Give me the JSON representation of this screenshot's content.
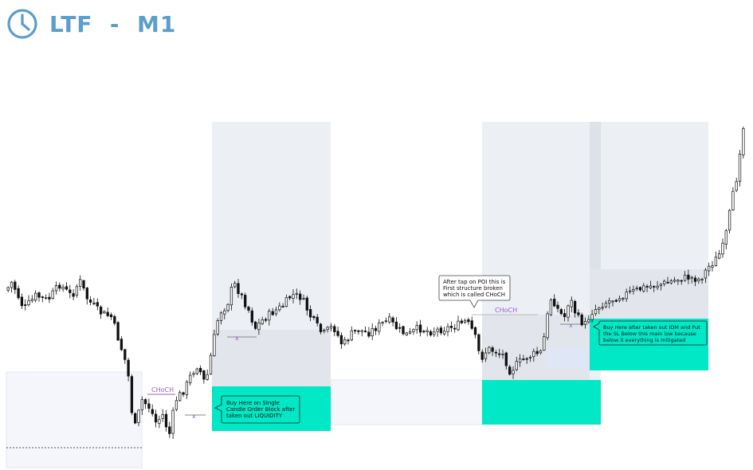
{
  "header": {
    "title": "LTF  -  M1",
    "icon": "clock-icon",
    "color": "#5b9ec9"
  },
  "chart_data": {
    "type": "candlestick",
    "timeframe": "M1",
    "colors": {
      "candle": "#111111",
      "zone_gray": "#e6e9ef",
      "zone_blue": "#f1f4fb",
      "order_block": "#00e8c6",
      "choch": "#9b59d0"
    },
    "close_path": [
      [
        0,
        376
      ],
      [
        15,
        354
      ],
      [
        30,
        388
      ],
      [
        45,
        371
      ],
      [
        60,
        377
      ],
      [
        75,
        357
      ],
      [
        90,
        372
      ],
      [
        100,
        352
      ],
      [
        110,
        376
      ],
      [
        125,
        392
      ],
      [
        140,
        398
      ],
      [
        150,
        430
      ],
      [
        160,
        462
      ],
      [
        168,
        542
      ],
      [
        178,
        502
      ],
      [
        188,
        512
      ],
      [
        196,
        531
      ],
      [
        205,
        520
      ],
      [
        212,
        549
      ],
      [
        220,
        503
      ],
      [
        232,
        488
      ],
      [
        240,
        470
      ],
      [
        248,
        458
      ],
      [
        258,
        483
      ],
      [
        268,
        428
      ],
      [
        275,
        393
      ],
      [
        285,
        383
      ],
      [
        293,
        355
      ],
      [
        300,
        366
      ],
      [
        312,
        389
      ],
      [
        320,
        412
      ],
      [
        330,
        401
      ],
      [
        342,
        392
      ],
      [
        355,
        384
      ],
      [
        366,
        370
      ],
      [
        378,
        373
      ],
      [
        390,
        398
      ],
      [
        405,
        420
      ],
      [
        418,
        409
      ],
      [
        430,
        434
      ],
      [
        440,
        420
      ],
      [
        450,
        414
      ],
      [
        462,
        418
      ],
      [
        475,
        409
      ],
      [
        488,
        402
      ],
      [
        500,
        414
      ],
      [
        512,
        421
      ],
      [
        525,
        412
      ],
      [
        540,
        416
      ],
      [
        555,
        413
      ],
      [
        570,
        410
      ],
      [
        585,
        403
      ],
      [
        595,
        418
      ],
      [
        603,
        451
      ],
      [
        612,
        438
      ],
      [
        622,
        441
      ],
      [
        632,
        446
      ],
      [
        640,
        466
      ],
      [
        650,
        456
      ],
      [
        662,
        448
      ],
      [
        672,
        444
      ],
      [
        680,
        442
      ],
      [
        686,
        402
      ],
      [
        692,
        372
      ],
      [
        700,
        388
      ],
      [
        708,
        400
      ],
      [
        715,
        373
      ],
      [
        724,
        398
      ],
      [
        734,
        408
      ],
      [
        742,
        392
      ],
      [
        755,
        382
      ],
      [
        768,
        376
      ],
      [
        782,
        370
      ],
      [
        795,
        366
      ],
      [
        808,
        361
      ],
      [
        822,
        358
      ],
      [
        838,
        355
      ],
      [
        852,
        350
      ],
      [
        865,
        348
      ],
      [
        878,
        351
      ],
      [
        890,
        334
      ],
      [
        898,
        326
      ],
      [
        906,
        314
      ],
      [
        912,
        290
      ],
      [
        918,
        254
      ],
      [
        924,
        226
      ],
      [
        928,
        192
      ],
      [
        933,
        160
      ]
    ],
    "candle_count": 215,
    "annotations": [
      {
        "text": "Buy Here on Single Candle Order Block after taken out LIQUIDITY",
        "lines": [
          "Buy Here on Single",
          "Candle Order Block after",
          "taken out LIQUIDITY"
        ]
      },
      {
        "text": "After tap on POI this is First structure broken which is called CHoCH",
        "lines": [
          "After tap on POI this is",
          "First structure broken",
          "which is called CHoCH"
        ]
      },
      {
        "text": "Buy Here after taken out IDM and Put the SL Below this main low because below it everything is mitigated",
        "lines": [
          "Buy Here after taken out IDM and Put",
          "the SL Below this main low because",
          "below it everything is mitigated"
        ]
      }
    ],
    "labels": {
      "choch_1": "CHoCH",
      "choch_2": "CHoCH",
      "idm_1": "x",
      "idm_2": "x",
      "idm_3": "x"
    },
    "grid": false,
    "legend": "none"
  }
}
